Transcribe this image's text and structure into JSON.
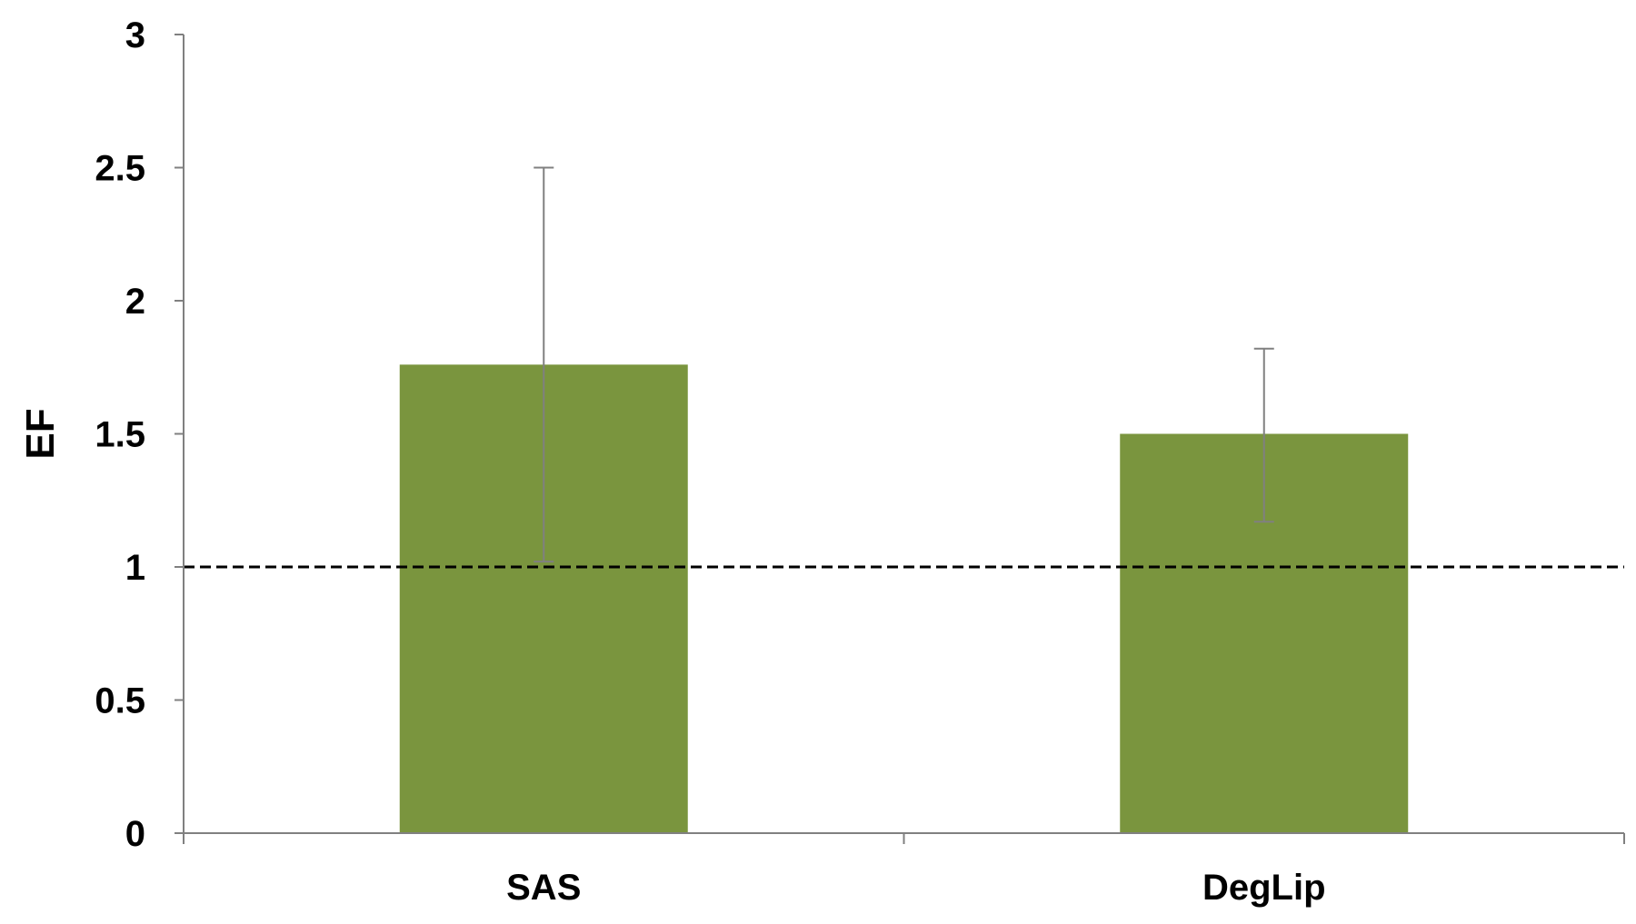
{
  "chart_data": {
    "type": "bar",
    "title": "",
    "xlabel": "",
    "ylabel": "EF",
    "ylim": [
      0,
      3
    ],
    "yticks": [
      "0",
      "0.5",
      "1",
      "1.5",
      "2",
      "2.5",
      "3"
    ],
    "categories": [
      "SAS",
      "DegLip"
    ],
    "series": [
      {
        "values": [
          1.76,
          1.5
        ],
        "error_low": [
          0.74,
          0.33
        ],
        "error_high": [
          0.74,
          0.32
        ]
      }
    ],
    "reference_line": {
      "y": 1,
      "style": "dashed"
    },
    "grid": false,
    "legend": "none",
    "colors": {
      "bar": "#7a953e",
      "error_bar": "#808080",
      "axis": "#808080",
      "reference_line": "#000000",
      "text": "#000000"
    }
  }
}
